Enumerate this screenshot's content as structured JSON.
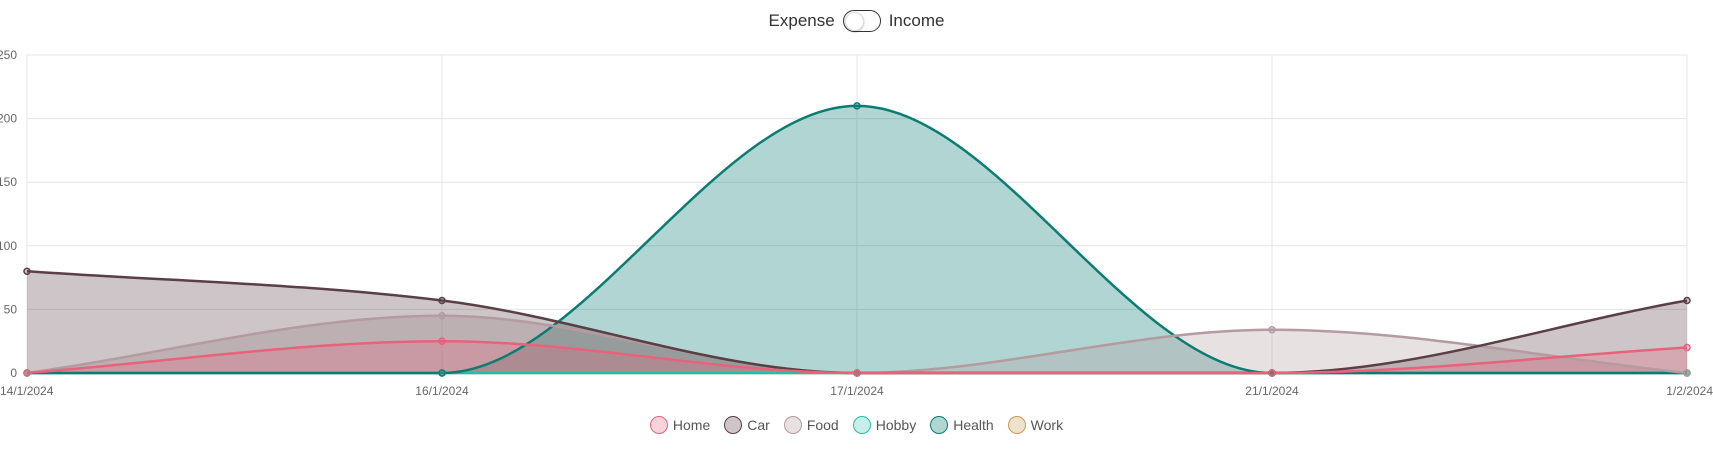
{
  "toggle": {
    "left_label": "Expense",
    "right_label": "Income"
  },
  "chart_data": {
    "type": "area",
    "x": [
      "14/1/2024",
      "16/1/2024",
      "17/1/2024",
      "21/1/2024",
      "1/2/2024"
    ],
    "ylim": [
      0,
      250
    ],
    "yticks": [
      "0",
      "50",
      "100",
      "150",
      "200",
      "250"
    ],
    "grid": true,
    "legend": "bottom",
    "series": [
      {
        "name": "Home",
        "values": [
          0,
          25,
          0,
          0,
          20
        ],
        "line": "#e8627c",
        "fill": "rgba(232,98,124,0.28)"
      },
      {
        "name": "Car",
        "values": [
          80,
          57,
          0,
          0,
          57
        ],
        "line": "#5a3f44",
        "fill": "rgba(90,63,68,0.30)"
      },
      {
        "name": "Food",
        "values": [
          0,
          45,
          0,
          34,
          0
        ],
        "line": "#b39ba0",
        "fill": "rgba(179,155,160,0.30)"
      },
      {
        "name": "Hobby",
        "values": [
          0,
          0,
          0,
          0,
          0
        ],
        "line": "#1fbfa8",
        "fill": "rgba(31,191,168,0.25)"
      },
      {
        "name": "Health",
        "values": [
          0,
          0,
          210,
          0,
          0
        ],
        "line": "#0b7c73",
        "fill": "rgba(11,124,115,0.32)"
      },
      {
        "name": "Work",
        "values": [
          0,
          0,
          0,
          0,
          0
        ],
        "line": "#c69a5a",
        "fill": "rgba(198,154,90,0.30)"
      }
    ]
  }
}
